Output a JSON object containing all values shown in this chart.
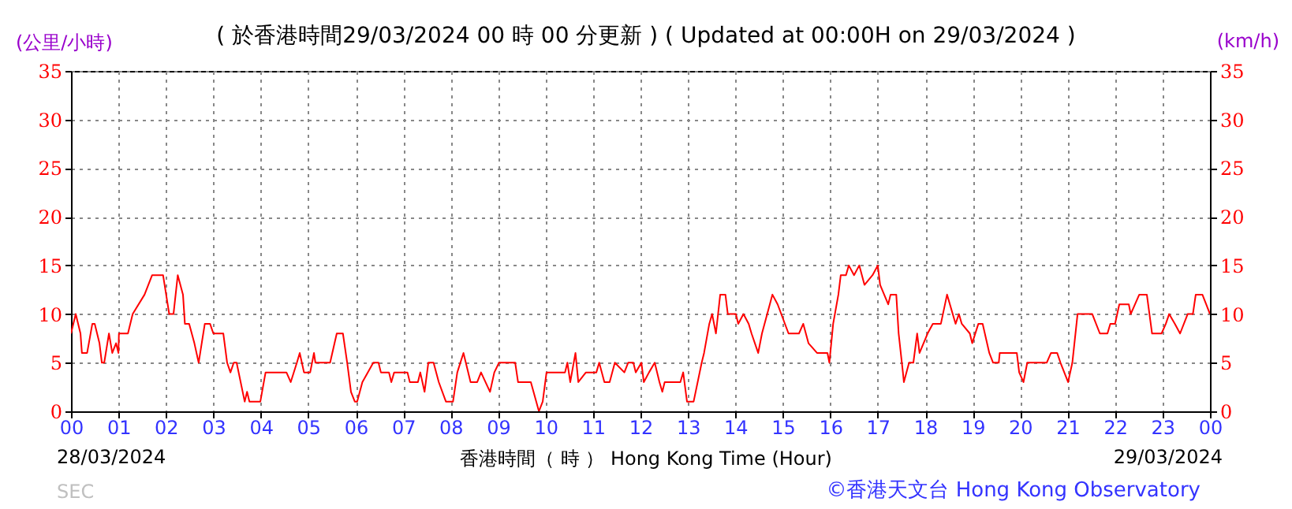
{
  "chart_data": {
    "type": "line",
    "title": "( 於香港時間29/03/2024 00 時 00 分更新 ) ( Updated at 00:00H on 29/03/2024 )",
    "xlabel": "香港時間（ 時 ） Hong Kong Time (Hour)",
    "ylabel": "(公里/小時)",
    "y2label": "(km/h)",
    "annotations": [
      "28/03/2024",
      "29/03/2024",
      "©香港天文台 Hong Kong Observatory",
      "SEC"
    ],
    "xlim": [
      0,
      24
    ],
    "xticks": [
      {
        "value": 0,
        "label": "00"
      },
      {
        "value": 1,
        "label": "01"
      },
      {
        "value": 2,
        "label": "02"
      },
      {
        "value": 3,
        "label": "03"
      },
      {
        "value": 4,
        "label": "04"
      },
      {
        "value": 5,
        "label": "05"
      },
      {
        "value": 6,
        "label": "06"
      },
      {
        "value": 7,
        "label": "07"
      },
      {
        "value": 8,
        "label": "08"
      },
      {
        "value": 9,
        "label": "09"
      },
      {
        "value": 10,
        "label": "10"
      },
      {
        "value": 11,
        "label": "11"
      },
      {
        "value": 12,
        "label": "12"
      },
      {
        "value": 13,
        "label": "13"
      },
      {
        "value": 14,
        "label": "14"
      },
      {
        "value": 15,
        "label": "15"
      },
      {
        "value": 16,
        "label": "16"
      },
      {
        "value": 17,
        "label": "17"
      },
      {
        "value": 18,
        "label": "18"
      },
      {
        "value": 19,
        "label": "19"
      },
      {
        "value": 20,
        "label": "20"
      },
      {
        "value": 21,
        "label": "21"
      },
      {
        "value": 22,
        "label": "22"
      },
      {
        "value": 23,
        "label": "23"
      },
      {
        "value": 24,
        "label": "00"
      }
    ],
    "ylim": [
      0,
      35
    ],
    "yticks": [
      0,
      5,
      10,
      15,
      20,
      25,
      30,
      35
    ],
    "y2lim": [
      0,
      35
    ],
    "y2ticks": [
      0,
      5,
      10,
      15,
      20,
      25,
      30,
      35
    ],
    "grid": true,
    "series": [
      {
        "color": "#ff0000",
        "x": [
          0,
          0.1,
          0.2,
          0.23,
          0.34,
          0.45,
          0.5,
          0.6,
          0.65,
          0.7,
          0.8,
          0.87,
          0.95,
          1.0,
          1.01,
          1.2,
          1.3,
          1.55,
          1.71,
          1.94,
          2.07,
          2.16,
          2.25,
          2.36,
          2.4,
          2.49,
          2.6,
          2.69,
          2.82,
          2.93,
          3.0,
          3.21,
          3.29,
          3.36,
          3.43,
          3.49,
          3.66,
          3.71,
          3.76,
          3.99,
          4.1,
          4.54,
          4.63,
          4.76,
          4.82,
          4.91,
          5.04,
          5.12,
          5.15,
          5.46,
          5.6,
          5.73,
          5.82,
          5.9,
          5.98,
          6.03,
          6.14,
          6.37,
          6.48,
          6.53,
          6.7,
          6.75,
          6.81,
          7.09,
          7.14,
          7.31,
          7.36,
          7.45,
          7.53,
          7.64,
          7.75,
          7.9,
          8.05,
          8.14,
          8.27,
          8.42,
          8.56,
          8.64,
          8.83,
          8.92,
          9.02,
          9.36,
          9.42,
          9.69,
          9.86,
          9.94,
          10.02,
          10.24,
          10.41,
          10.46,
          10.52,
          10.63,
          10.69,
          10.85,
          11.07,
          11.13,
          11.24,
          11.35,
          11.46,
          11.66,
          11.74,
          11.85,
          11.9,
          12.02,
          12.07,
          12.18,
          12.3,
          12.4,
          12.46,
          12.51,
          12.84,
          12.9,
          12.98,
          13.12,
          13.29,
          13.34,
          13.45,
          13.51,
          13.59,
          13.68,
          13.79,
          13.84,
          14.01,
          14.06,
          14.17,
          14.28,
          14.34,
          14.48,
          14.56,
          14.78,
          14.89,
          15.12,
          15.34,
          15.43,
          15.54,
          15.72,
          15.94,
          15.98,
          16.06,
          16.17,
          16.22,
          16.33,
          16.39,
          16.5,
          16.61,
          16.72,
          16.89,
          17.0,
          17.05,
          17.22,
          17.27,
          17.39,
          17.44,
          17.53,
          17.55,
          17.66,
          17.75,
          17.83,
          17.88,
          18.05,
          18.16,
          18.33,
          18.46,
          18.64,
          18.71,
          18.77,
          18.94,
          18.99,
          19.12,
          19.21,
          19.35,
          19.43,
          19.55,
          19.57,
          19.93,
          19.98,
          20.07,
          20.15,
          20.56,
          20.65,
          20.78,
          20.85,
          20.93,
          21.01,
          21.1,
          21.21,
          21.52,
          21.68,
          21.84,
          21.9,
          22.0,
          22.09,
          22.29,
          22.33,
          22.51,
          22.67,
          22.78,
          22.98,
          23.07,
          23.14,
          23.26,
          23.37,
          23.53,
          23.64,
          23.7,
          23.84,
          23.92,
          24.0
        ],
        "values": [
          8,
          10,
          8,
          6,
          6,
          9,
          9,
          7,
          5,
          5,
          8,
          6,
          7,
          6,
          8,
          8,
          10,
          12,
          14,
          14,
          10,
          10,
          14,
          12,
          9,
          9,
          7,
          5,
          9,
          9,
          8,
          8,
          5,
          4,
          5,
          5,
          1,
          2,
          1,
          1,
          4,
          4,
          3,
          5,
          6,
          4,
          4,
          6,
          5,
          5,
          8,
          8,
          5,
          2,
          1,
          1,
          3,
          5,
          5,
          4,
          4,
          3,
          4,
          4,
          3,
          3,
          4,
          2,
          5,
          5,
          3,
          1,
          1,
          4,
          6,
          3,
          3,
          4,
          2,
          4,
          5,
          5,
          3,
          3,
          0,
          1,
          4,
          4,
          4,
          5,
          3,
          6,
          3,
          4,
          4,
          5,
          3,
          3,
          5,
          4,
          5,
          5,
          4,
          5,
          3,
          4,
          5,
          3,
          2,
          3,
          3,
          4,
          1,
          1,
          5,
          6,
          9,
          10,
          8,
          12,
          12,
          10,
          10,
          9,
          10,
          9,
          8,
          6,
          8,
          12,
          11,
          8,
          8,
          9,
          7,
          6,
          6,
          5,
          9,
          12,
          14,
          14,
          15,
          14,
          15,
          13,
          14,
          15,
          13,
          11,
          12,
          12,
          8,
          4,
          3,
          5,
          5,
          8,
          6,
          8,
          9,
          9,
          12,
          9,
          10,
          9,
          8,
          7,
          9,
          9,
          6,
          5,
          5,
          6,
          6,
          4,
          3,
          5,
          5,
          6,
          6,
          5,
          4,
          3,
          5,
          10,
          10,
          8,
          8,
          9,
          9,
          11,
          11,
          10,
          12,
          12,
          8,
          8,
          9,
          10,
          9,
          8,
          10,
          10,
          12,
          12,
          11,
          10
        ]
      }
    ]
  }
}
